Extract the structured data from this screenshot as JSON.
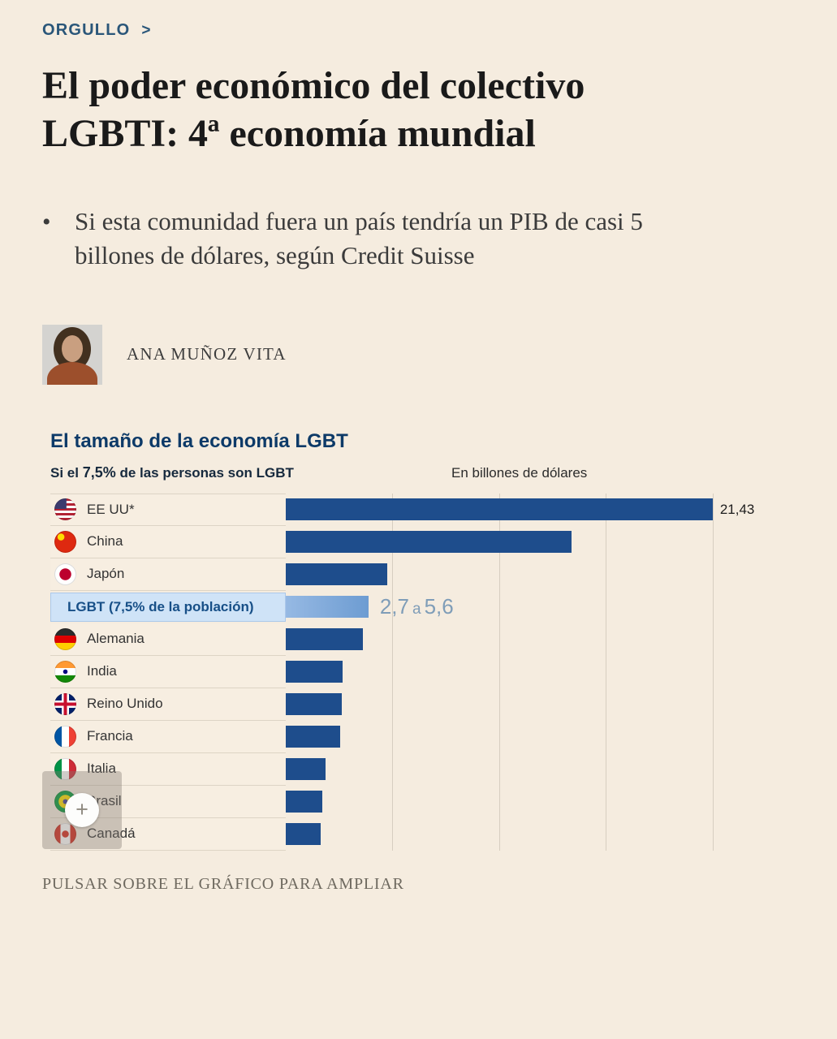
{
  "page": {
    "kicker": "ORGULLO",
    "kicker_arrow": ">",
    "headline": "El poder económico del colectivo LGBTI: 4ª economía mundial",
    "bullet": "Si esta comunidad fuera un país tendría un PIB de casi 5 billones de dólares, según Credit Suisse",
    "author": "ANA MUÑOZ VITA",
    "caption": "PULSAR SOBRE EL GRÁFICO PARA AMPLIAR"
  },
  "chart": {
    "title": "El tamaño de la economía LGBT",
    "subtitle_prefix": "Si el ",
    "subtitle_bold": "7,5%",
    "subtitle_suffix": " de las personas son LGBT",
    "units_label": "En billones de dólares",
    "zoom_label": "+"
  },
  "chart_data": {
    "type": "bar",
    "orientation": "horizontal",
    "title": "El tamaño de la economía LGBT",
    "subtitle": "Si el 7,5% de las personas son LGBT",
    "units": "En billones de dólares",
    "xlim": [
      0,
      21.43
    ],
    "grid": true,
    "categories": [
      "EE UU*",
      "China",
      "Japón",
      "LGBT (7,5% de la población)",
      "Alemania",
      "India",
      "Reino Unido",
      "Francia",
      "Italia",
      "Brasil",
      "Canadá"
    ],
    "values": [
      21.43,
      14.34,
      5.08,
      4.15,
      3.86,
      2.87,
      2.83,
      2.72,
      2.0,
      1.84,
      1.74
    ],
    "rows": [
      {
        "label": "EE UU*",
        "flag": "us",
        "value": 21.43,
        "value_label": "21,43"
      },
      {
        "label": "China",
        "flag": "china",
        "value": 14.34
      },
      {
        "label": "Japón",
        "flag": "japan",
        "value": 5.08
      },
      {
        "label": "LGBT (7,5% de la población)",
        "flag": "",
        "value": 4.15,
        "range_label": "2,7 a 5,6",
        "highlight": true
      },
      {
        "label": "Alemania",
        "flag": "germany",
        "value": 3.86
      },
      {
        "label": "India",
        "flag": "india",
        "value": 2.87
      },
      {
        "label": "Reino Unido",
        "flag": "uk",
        "value": 2.83
      },
      {
        "label": "Francia",
        "flag": "france",
        "value": 2.72
      },
      {
        "label": "Italia",
        "flag": "italy",
        "value": 2.0
      },
      {
        "label": "Brasil",
        "flag": "brazil",
        "value": 1.84
      },
      {
        "label": "Canadá",
        "flag": "canada",
        "value": 1.74
      }
    ]
  },
  "colors": {
    "background": "#f5ecdf",
    "bar": "#1e4d8c",
    "bar_light": "#7ea9da",
    "highlight_bg": "#cfe3f7",
    "kicker": "#2a5679",
    "chart_title": "#0d3a68",
    "range_text": "#7f9db8"
  }
}
